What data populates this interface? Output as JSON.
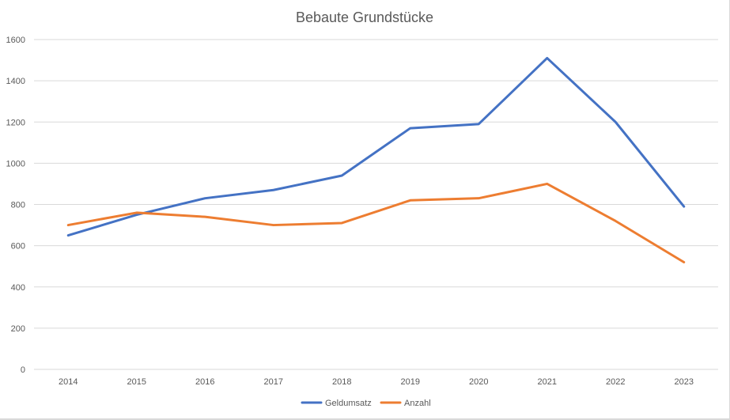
{
  "chart_data": {
    "type": "line",
    "title": "Bebaute Grundstücke",
    "xlabel": "",
    "ylabel": "",
    "categories": [
      "2014",
      "2015",
      "2016",
      "2017",
      "2018",
      "2019",
      "2020",
      "2021",
      "2022",
      "2023"
    ],
    "ylim": [
      0,
      1600
    ],
    "yticks": [
      "0",
      "200",
      "400",
      "600",
      "800",
      "1000",
      "1200",
      "1400",
      "1600"
    ],
    "grid": true,
    "legend_position": "bottom",
    "series": [
      {
        "name": "Geldumsatz",
        "color": "#4472c4",
        "values": [
          650,
          750,
          830,
          870,
          940,
          1170,
          1190,
          1510,
          1200,
          790
        ]
      },
      {
        "name": "Anzahl",
        "color": "#ed7d31",
        "values": [
          700,
          760,
          740,
          700,
          710,
          820,
          830,
          900,
          720,
          520
        ]
      }
    ]
  }
}
